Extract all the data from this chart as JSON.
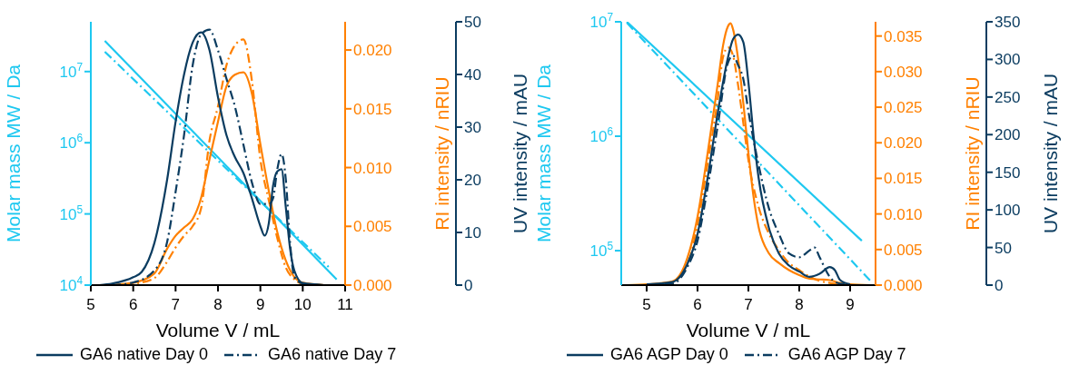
{
  "chart_data": [
    {
      "type": "line",
      "xlabel": "Volume V / mL",
      "ylabel": "Molar mass MW / Da",
      "y2label": "RI intensity / nRIU",
      "y3label": "UV intensity / mAU",
      "xlim": [
        5,
        11
      ],
      "xticks": [
        5,
        6,
        7,
        8,
        9,
        10,
        11
      ],
      "log": "y",
      "ylim": [
        10000,
        50000000
      ],
      "yticks": [
        {
          "value": 10000,
          "label": "10$^{4}$"
        },
        {
          "value": 100000,
          "label": "10$^{5}$"
        },
        {
          "value": 1000000,
          "label": "10$^{6}$"
        },
        {
          "value": 10000000,
          "label": "10$^{7}$"
        }
      ],
      "y2lim": [
        0,
        0.0224
      ],
      "y2ticks": [
        {
          "value": 0,
          "label": "0.000"
        },
        {
          "value": 0.005,
          "label": "0.005"
        },
        {
          "value": 0.01,
          "label": "0.010"
        },
        {
          "value": 0.015,
          "label": "0.015"
        },
        {
          "value": 0.02,
          "label": "0.020"
        }
      ],
      "y3lim": [
        0,
        50
      ],
      "y3ticks": [
        0,
        10,
        20,
        30,
        40,
        50
      ],
      "legend": "bottom",
      "marker": "none",
      "grid": false,
      "series": [
        {
          "color": "#1ec8f0",
          "line_style": "solid",
          "x": [
            5.33,
            10.8
          ],
          "values": [
            27000000,
            12000
          ]
        },
        {
          "color": "#1ec8f0",
          "line_style": "dashdot",
          "x": [
            5.33,
            10.61
          ],
          "values": [
            19000000,
            18000
          ]
        },
        {
          "color": "#ff8000",
          "line_style": "solid",
          "axis": "y2",
          "x": [
            5.5,
            5.8,
            6,
            6.5,
            6.8,
            7,
            7.2,
            7.4,
            7.6,
            7.8,
            8,
            8.2,
            8.4,
            8.6,
            8.8,
            9,
            9.2,
            9.4,
            9.6,
            9.8,
            10,
            10.5
          ],
          "values": [
            0,
            0.0001,
            0.0002,
            0.001,
            0.0031,
            0.0042,
            0.0049,
            0.0056,
            0.0074,
            0.0107,
            0.0139,
            0.0169,
            0.0179,
            0.0181,
            0.0163,
            0.012,
            0.008,
            0.0045,
            0.0021,
            0.0007,
            0.0002,
            0
          ]
        },
        {
          "color": "#ff8000",
          "line_style": "dashdot",
          "axis": "y2",
          "x": [
            5.8,
            6,
            6.5,
            6.8,
            7,
            7.2,
            7.4,
            7.6,
            7.8,
            8,
            8.2,
            8.4,
            8.6,
            8.8,
            9,
            9.2,
            9.4,
            9.6,
            9.8,
            10,
            10.5
          ],
          "values": [
            0,
            0.0001,
            0.0006,
            0.002,
            0.0032,
            0.0042,
            0.005,
            0.0065,
            0.0123,
            0.0152,
            0.0187,
            0.0204,
            0.0209,
            0.0174,
            0.0107,
            0.0072,
            0.004,
            0.0015,
            0.0005,
            0.0001,
            0
          ]
        },
        {
          "name": "GA6 native Day 0",
          "color": "#0b3c60",
          "line_style": "solid",
          "axis": "y3",
          "x": [
            5.2,
            5.5,
            6,
            6.2,
            6.5,
            6.8,
            7,
            7.2,
            7.4,
            7.6,
            7.8,
            8,
            8.2,
            8.4,
            8.6,
            8.8,
            9,
            9.1,
            9.2,
            9.3,
            9.4,
            9.5,
            9.6,
            9.7,
            9.8,
            10,
            10.5
          ],
          "values": [
            0,
            0.3,
            1.5,
            2.5,
            8,
            20,
            31,
            40,
            46,
            48,
            44.6,
            35.7,
            28.5,
            24.3,
            21.3,
            16.5,
            11.2,
            9.4,
            11.8,
            18.9,
            21.6,
            22,
            14.8,
            7,
            2.8,
            0.4,
            0
          ]
        },
        {
          "name": "GA6 native Day 7",
          "color": "#0b3c60",
          "line_style": "dashdot",
          "axis": "y3",
          "x": [
            5.5,
            6,
            6.5,
            6.8,
            7,
            7.2,
            7.4,
            7.6,
            7.8,
            8,
            8.2,
            8.4,
            8.6,
            8.8,
            9,
            9.2,
            9.3,
            9.4,
            9.5,
            9.6,
            9.7,
            9.8,
            10,
            10.5
          ],
          "values": [
            0,
            0.5,
            2.8,
            8.2,
            17.7,
            28.5,
            41.6,
            47.6,
            48.5,
            44.6,
            39.2,
            33.9,
            26.7,
            19.5,
            15.4,
            15.4,
            16.5,
            22,
            24.9,
            20.1,
            8.2,
            1.6,
            0.3,
            0
          ]
        }
      ]
    },
    {
      "type": "line",
      "xlabel": "Volume V / mL",
      "ylabel": "Molar mass MW / Da",
      "y2label": "RI intensity / nRIU",
      "y3label": "UV intensity / mAU",
      "xlim": [
        4.5,
        9.5
      ],
      "xticks": [
        5,
        6,
        7,
        8,
        9
      ],
      "log": "y",
      "ylim": [
        50000,
        10000000
      ],
      "yticks": [
        {
          "value": 100000,
          "label": "10$^{5}$"
        },
        {
          "value": 1000000,
          "label": "10$^{6}$"
        },
        {
          "value": 10000000,
          "label": "10$^{7}$"
        }
      ],
      "y2lim": [
        0,
        0.037
      ],
      "y2ticks": [
        {
          "value": 0,
          "label": "0.000"
        },
        {
          "value": 0.005,
          "label": "0.005"
        },
        {
          "value": 0.01,
          "label": "0.010"
        },
        {
          "value": 0.015,
          "label": "0.015"
        },
        {
          "value": 0.02,
          "label": "0.020"
        },
        {
          "value": 0.025,
          "label": "0.025"
        },
        {
          "value": 0.03,
          "label": "0.030"
        },
        {
          "value": 0.035,
          "label": "0.035"
        }
      ],
      "y3lim": [
        0,
        350
      ],
      "y3ticks": [
        0,
        50,
        100,
        150,
        200,
        250,
        300,
        350
      ],
      "legend": "bottom",
      "marker": "none",
      "grid": false,
      "series": [
        {
          "color": "#1ec8f0",
          "line_style": "solid",
          "x": [
            4.61,
            9.23
          ],
          "values": [
            10000000,
            122000
          ]
        },
        {
          "color": "#1ec8f0",
          "line_style": "dashdot",
          "x": [
            4.61,
            9.41
          ],
          "values": [
            9800000,
            54000
          ]
        },
        {
          "color": "#ff8000",
          "line_style": "solid",
          "axis": "y2",
          "x": [
            4.6,
            5,
            5.5,
            5.8,
            6,
            6.2,
            6.4,
            6.5,
            6.6,
            6.65,
            6.7,
            6.8,
            6.9,
            7,
            7.1,
            7.2,
            7.4,
            7.6,
            7.8,
            8,
            8.2,
            8.4,
            8.6,
            8.8,
            9,
            9.4
          ],
          "values": [
            0,
            0.0001,
            0.0005,
            0.0038,
            0.0096,
            0.0186,
            0.0284,
            0.0336,
            0.0364,
            0.0368,
            0.0359,
            0.0317,
            0.0256,
            0.0186,
            0.0125,
            0.0082,
            0.0045,
            0.0031,
            0.0021,
            0.0014,
            0.0009,
            0.0008,
            0.0007,
            0.0003,
            0.0001,
            0
          ]
        },
        {
          "color": "#ff8000",
          "line_style": "dashdot",
          "axis": "y2",
          "x": [
            5,
            5.5,
            5.8,
            6,
            6.2,
            6.4,
            6.5,
            6.6,
            6.7,
            6.8,
            6.9,
            7,
            7.2,
            7.4,
            7.6,
            7.8,
            8,
            8.2,
            8.4,
            8.6,
            8.8,
            9
          ],
          "values": [
            0,
            0.0003,
            0.0028,
            0.0085,
            0.0172,
            0.0263,
            0.032,
            0.0334,
            0.0322,
            0.028,
            0.0228,
            0.0176,
            0.011,
            0.0073,
            0.0049,
            0.0031,
            0.0021,
            0.0012,
            0.0006,
            0.0003,
            0.0001,
            0
          ]
        },
        {
          "name": "GA6 AGP Day 0",
          "color": "#0b3c60",
          "line_style": "solid",
          "axis": "y3",
          "x": [
            5,
            5.5,
            5.8,
            6,
            6.2,
            6.4,
            6.6,
            6.7,
            6.8,
            6.9,
            7,
            7.1,
            7.2,
            7.4,
            7.6,
            7.8,
            8,
            8.2,
            8.4,
            8.6,
            8.7,
            8.8,
            9
          ],
          "values": [
            1,
            4,
            28,
            68,
            143,
            230,
            303,
            327,
            333,
            323,
            270,
            200,
            143,
            77,
            42,
            26,
            18,
            11,
            15,
            24,
            20,
            7,
            1
          ]
        },
        {
          "name": "GA6 AGP Day 7",
          "color": "#0b3c60",
          "line_style": "dashdot",
          "axis": "y3",
          "x": [
            5,
            5.5,
            5.8,
            6,
            6.2,
            6.4,
            6.6,
            6.7,
            6.8,
            6.9,
            7,
            7.2,
            7.4,
            7.6,
            7.8,
            8,
            8.2,
            8.3,
            8.4,
            8.6,
            8.8,
            9
          ],
          "values": [
            1,
            2,
            24,
            59,
            130,
            213,
            296,
            305,
            292,
            274,
            231,
            160,
            103,
            68,
            42,
            37,
            46,
            50,
            37,
            11,
            2,
            1
          ]
        }
      ]
    }
  ]
}
